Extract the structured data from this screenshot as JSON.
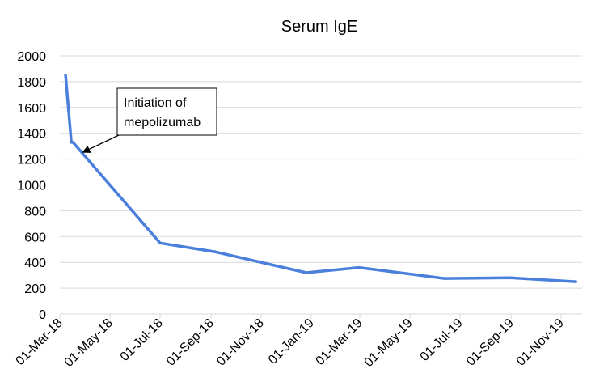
{
  "chart_data": {
    "type": "line",
    "title": "Serum IgE",
    "xlabel": "",
    "ylabel": "",
    "ylim": [
      0,
      2000
    ],
    "yticks": [
      "0",
      "200",
      "400",
      "600",
      "800",
      "1000",
      "1200",
      "1400",
      "1600",
      "1800",
      "2000"
    ],
    "xticks": [
      "01-Mar-18",
      "01-May-18",
      "01-Jul-18",
      "01-Sep-18",
      "01-Nov-18",
      "01-Jan-19",
      "01-Mar-19",
      "01-May-19",
      "01-Jul-19",
      "01-Sep-19",
      "01-Nov-19"
    ],
    "xtick_dates": [
      "2018-03-01",
      "2018-05-01",
      "2018-07-01",
      "2018-09-01",
      "2018-11-01",
      "2019-01-01",
      "2019-03-01",
      "2019-05-01",
      "2019-07-01",
      "2019-09-01",
      "2019-11-01"
    ],
    "grid": true,
    "series_color": "#4a7fdc",
    "series": [
      {
        "x": [
          "2018-03-08",
          "2018-03-15",
          "2018-03-17",
          "2018-07-01",
          "2018-09-07",
          "2018-12-26",
          "2019-02-28",
          "2019-06-12",
          "2019-09-01",
          "2019-11-19"
        ],
        "values": [
          1850,
          1330,
          1330,
          550,
          480,
          320,
          360,
          275,
          280,
          250
        ]
      }
    ],
    "annotation": {
      "lines": [
        "Initiation of",
        "mepolizumab"
      ],
      "points_to": {
        "x": "2018-03-28",
        "y": 1250
      }
    }
  }
}
